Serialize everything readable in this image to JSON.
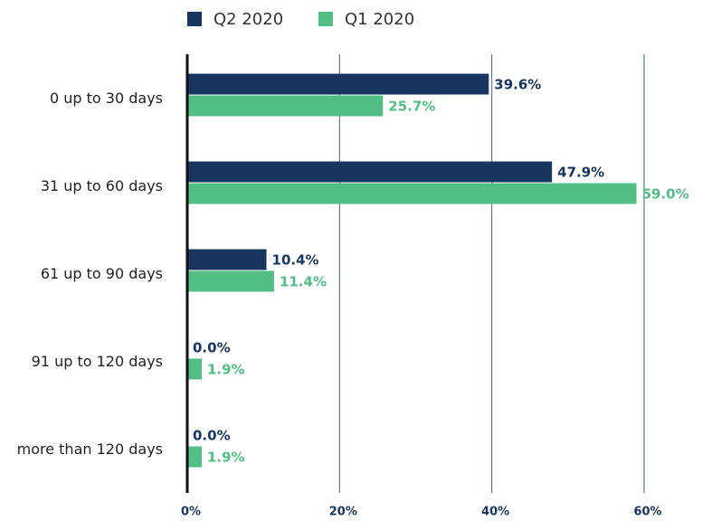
{
  "chart_data": {
    "type": "bar",
    "orientation": "horizontal",
    "categories": [
      "0 up to 30 days",
      "31 up to 60 days",
      "61 up to 90 days",
      "91 up to 120 days",
      "more than 120 days"
    ],
    "series": [
      {
        "name": "Q2 2020",
        "color": "#17355e",
        "values": [
          39.6,
          47.9,
          10.4,
          0.0,
          0.0
        ],
        "value_labels": [
          "39.6%",
          "47.9%",
          "10.4%",
          "0.0%",
          "0.0%"
        ]
      },
      {
        "name": "Q1 2020",
        "color": "#52be85",
        "values": [
          25.7,
          59.0,
          11.4,
          1.9,
          1.9
        ],
        "value_labels": [
          "25.7%",
          "59.0%",
          "11.4%",
          "1.9%",
          "1.9%"
        ]
      }
    ],
    "xlim": [
      0,
      60
    ],
    "xticks": [
      {
        "value": 0,
        "label": "0%"
      },
      {
        "value": 20,
        "label": "20%"
      },
      {
        "value": 40,
        "label": "40%"
      },
      {
        "value": 60,
        "label": "60%"
      }
    ],
    "grid": true,
    "legend": "top"
  }
}
